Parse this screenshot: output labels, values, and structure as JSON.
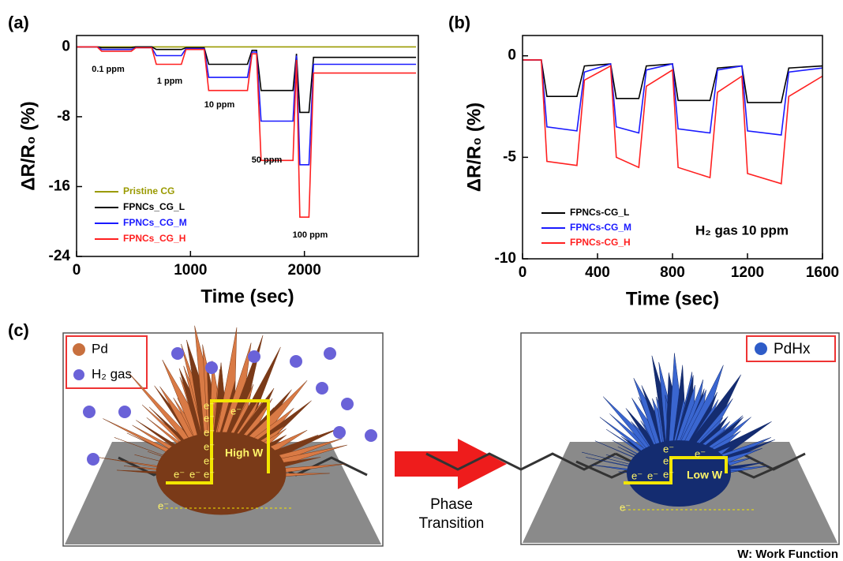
{
  "chart_data": [
    {
      "type": "line",
      "label": "(a)",
      "x_label": "Time (sec)",
      "y_label": "ΔR/R₀ (%)",
      "xlim": [
        0,
        3000
      ],
      "xticks": [
        0,
        1000,
        2000
      ],
      "ylim": [
        -24,
        1.3
      ],
      "yticks": [
        0,
        -8,
        -16,
        -24
      ],
      "x": [
        0,
        180,
        220,
        480,
        520,
        660,
        700,
        920,
        960,
        1120,
        1160,
        1500,
        1540,
        1580,
        1620,
        1900,
        1930,
        1960,
        2040,
        2080,
        2980
      ],
      "series": [
        {
          "name": "Pristine CG",
          "color": "#9a9a00",
          "values": [
            0,
            0,
            0,
            0,
            0,
            0,
            0,
            0,
            0,
            0,
            0,
            0,
            0,
            0,
            0,
            0,
            0,
            0,
            0,
            0,
            0
          ]
        },
        {
          "name": "FPNCs_CG_L",
          "color": "#000000",
          "values": [
            0,
            0,
            -0.1,
            -0.1,
            0,
            0,
            -0.3,
            -0.3,
            -0.1,
            -0.1,
            -2,
            -2,
            -0.4,
            -0.4,
            -5,
            -5,
            -0.8,
            -7.5,
            -7.5,
            -1.2,
            -1.2
          ]
        },
        {
          "name": "FPNCs_CG_M",
          "color": "#1a1aff",
          "values": [
            0,
            0,
            -0.3,
            -0.3,
            -0.1,
            -0.1,
            -1,
            -1,
            -0.2,
            -0.2,
            -3.5,
            -3.5,
            -0.6,
            -0.6,
            -8.5,
            -8.5,
            -1,
            -13.5,
            -13.5,
            -2,
            -2
          ]
        },
        {
          "name": "FPNCs_CG_H",
          "color": "#ff2020",
          "values": [
            0,
            0,
            -0.5,
            -0.5,
            -0.1,
            -0.1,
            -2,
            -2,
            -0.3,
            -0.3,
            -5,
            -5,
            -0.8,
            -0.8,
            -13,
            -13,
            -1.5,
            -19.5,
            -19.5,
            -3,
            -3
          ]
        }
      ],
      "annotations": [
        "0.1 ppm",
        "1 ppm",
        "10 ppm",
        "50 ppm",
        "100 ppm"
      ]
    },
    {
      "type": "line",
      "label": "(b)",
      "x_label": "Time (sec)",
      "y_label": "ΔR/R₀ (%)",
      "xlim": [
        0,
        1600
      ],
      "xticks": [
        0,
        400,
        800,
        1200,
        1600
      ],
      "ylim": [
        -10,
        1
      ],
      "yticks": [
        0,
        -5,
        -10
      ],
      "x": [
        0,
        100,
        130,
        290,
        330,
        470,
        500,
        620,
        660,
        800,
        830,
        1000,
        1040,
        1170,
        1200,
        1380,
        1420,
        1600
      ],
      "series": [
        {
          "name": "FPNCs-CG_L",
          "color": "#000000",
          "values": [
            -0.2,
            -0.2,
            -2.0,
            -2.0,
            -0.5,
            -0.4,
            -2.1,
            -2.1,
            -0.5,
            -0.4,
            -2.2,
            -2.2,
            -0.6,
            -0.5,
            -2.3,
            -2.3,
            -0.6,
            -0.5
          ]
        },
        {
          "name": "FPNCs-CG_M",
          "color": "#1a1aff",
          "values": [
            -0.2,
            -0.2,
            -3.5,
            -3.7,
            -0.8,
            -0.4,
            -3.5,
            -3.8,
            -0.7,
            -0.4,
            -3.6,
            -3.8,
            -0.7,
            -0.5,
            -3.7,
            -3.9,
            -0.8,
            -0.6
          ]
        },
        {
          "name": "FPNCs-CG_H",
          "color": "#ff2020",
          "values": [
            -0.2,
            -0.2,
            -5.2,
            -5.4,
            -1.2,
            -0.5,
            -5.0,
            -5.5,
            -1.5,
            -0.7,
            -5.5,
            -6.0,
            -1.8,
            -1.0,
            -5.8,
            -6.3,
            -2.0,
            -1.0
          ]
        }
      ],
      "annotations": [
        "H₂ gas 10 ppm"
      ]
    }
  ],
  "diagram": {
    "label": "(c)",
    "legend_left": [
      "Pd",
      "H₂ gas"
    ],
    "legend_right": "PdHx",
    "electron": "e⁻",
    "high_w": "High W",
    "low_w": "Low W",
    "arrow_label": [
      "Phase",
      "Transition"
    ],
    "footnote": "W: Work Function"
  }
}
